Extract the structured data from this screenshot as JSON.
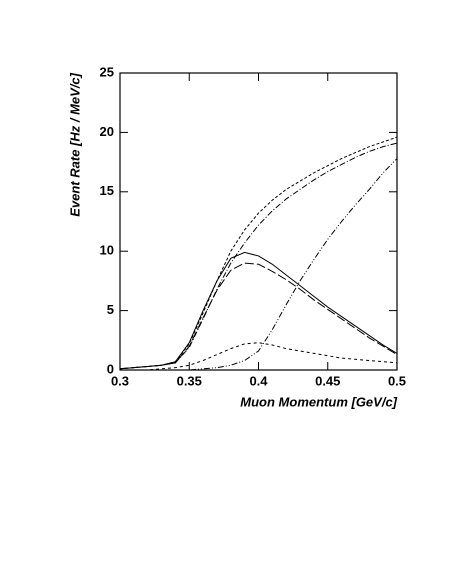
{
  "chart_data": {
    "type": "line",
    "x_label": "Muon Momentum [GeV/c]",
    "y_label": "Event Rate  [Hz / MeV/c]",
    "x": [
      0.3,
      0.31,
      0.32,
      0.33,
      0.34,
      0.35,
      0.36,
      0.37,
      0.38,
      0.39,
      0.4,
      0.41,
      0.42,
      0.43,
      0.44,
      0.45,
      0.46,
      0.47,
      0.48,
      0.49,
      0.5
    ],
    "series": [
      {
        "color": "#000000",
        "dash": "3,2",
        "values": [
          0.1,
          0.2,
          0.3,
          0.4,
          0.7,
          2.2,
          4.8,
          7.5,
          10.0,
          11.8,
          13.2,
          14.3,
          15.2,
          15.9,
          16.6,
          17.2,
          17.8,
          18.3,
          18.8,
          19.2,
          19.6
        ]
      },
      {
        "color": "#000000",
        "dash": "6,2,1,2",
        "values": [
          0.1,
          0.2,
          0.3,
          0.4,
          0.6,
          1.9,
          4.3,
          6.8,
          9.0,
          10.7,
          12.2,
          13.4,
          14.4,
          15.2,
          16.0,
          16.7,
          17.3,
          17.9,
          18.4,
          18.8,
          19.1
        ]
      },
      {
        "color": "#000000",
        "dash": "none",
        "values": [
          0.1,
          0.2,
          0.3,
          0.4,
          0.7,
          2.3,
          5.0,
          7.5,
          9.4,
          9.9,
          9.6,
          8.9,
          8.0,
          7.1,
          6.2,
          5.3,
          4.5,
          3.7,
          2.9,
          2.1,
          1.4
        ]
      },
      {
        "color": "#000000",
        "dash": "9,3",
        "values": [
          0.1,
          0.2,
          0.3,
          0.4,
          0.6,
          2.0,
          4.4,
          6.7,
          8.4,
          9.0,
          8.9,
          8.3,
          7.6,
          6.8,
          5.9,
          5.1,
          4.3,
          3.5,
          2.7,
          2.0,
          1.3
        ]
      },
      {
        "color": "#000000",
        "dash": "6,2,1,2,1,2",
        "values": [
          0,
          0,
          0,
          0,
          0,
          0,
          0.1,
          0.2,
          0.4,
          0.8,
          1.6,
          3.4,
          5.5,
          7.5,
          9.3,
          11.0,
          12.5,
          13.9,
          15.2,
          16.6,
          17.8
        ]
      },
      {
        "color": "#000000",
        "dash": "3,3",
        "values": [
          0,
          0,
          0,
          0.1,
          0.2,
          0.4,
          0.8,
          1.3,
          1.8,
          2.2,
          2.3,
          2.1,
          1.8,
          1.6,
          1.4,
          1.2,
          1.0,
          0.9,
          0.8,
          0.7,
          0.6
        ]
      }
    ],
    "xlim": [
      0.3,
      0.5
    ],
    "xticks": [
      0.3,
      0.35,
      0.4,
      0.45,
      0.5
    ],
    "ylim": [
      0,
      25
    ],
    "yticks": [
      0,
      5,
      10,
      15,
      20,
      25
    ]
  }
}
